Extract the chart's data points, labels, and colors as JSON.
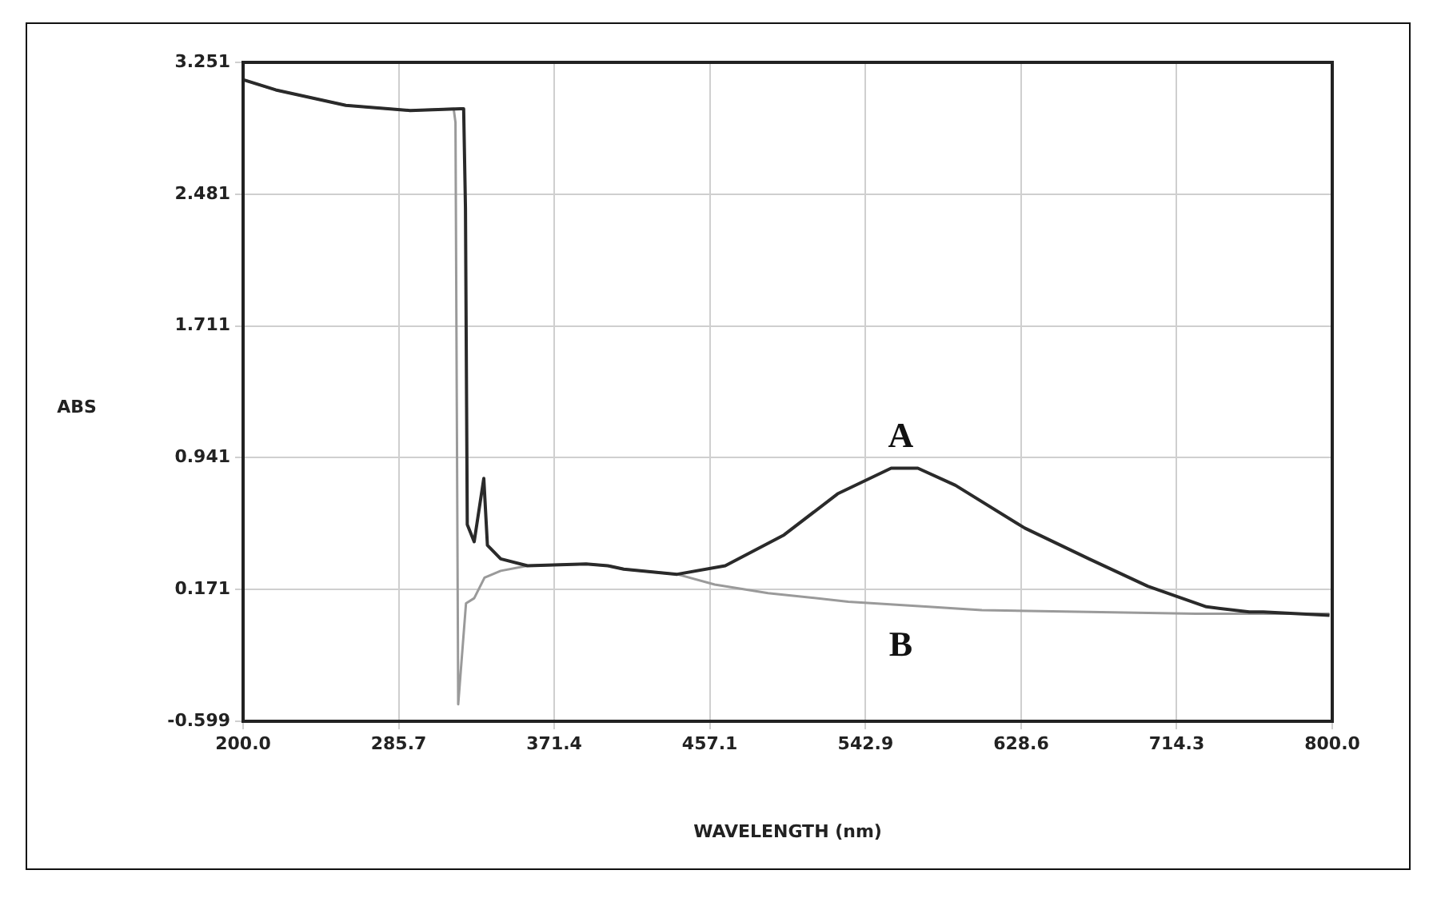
{
  "chart_data": {
    "type": "line",
    "xlabel": "WAVELENGTH (nm)",
    "ylabel": "ABS",
    "xlim": [
      200,
      800
    ],
    "xticks": [
      {
        "value": 200,
        "label": "200.0"
      },
      {
        "value": 285.7,
        "label": "285.7"
      },
      {
        "value": 371.4,
        "label": "371.4"
      },
      {
        "value": 457.1,
        "label": "457.1"
      },
      {
        "value": 542.9,
        "label": "542.9"
      },
      {
        "value": 628.6,
        "label": "628.6"
      },
      {
        "value": 714.3,
        "label": "714.3"
      },
      {
        "value": 800,
        "label": "800.0"
      }
    ],
    "ylim": [
      -0.599,
      3.251
    ],
    "yticks": [
      -0.599,
      0.171,
      0.941,
      1.711,
      2.481,
      3.251
    ],
    "grid": true,
    "legend": false,
    "marker": "none",
    "line_style": "solid",
    "series": [
      {
        "name": "A",
        "color": "#2a2a2a",
        "x": [
          200,
          218,
          256.6,
          292,
          319.8,
          321.5,
          322.5,
          323.5,
          327.3,
          332.6,
          334.6,
          341.9,
          356.7,
          389,
          400.9,
          409.7,
          439.1,
          465.6,
          498,
          527.5,
          557,
          571.7,
          592.4,
          630.6,
          666,
          698.4,
          730.7,
          754.3,
          762,
          798.5
        ],
        "values": [
          3.15,
          3.09,
          3.0,
          2.97,
          2.98,
          2.98,
          2.4,
          0.55,
          0.45,
          0.82,
          0.43,
          0.35,
          0.31,
          0.32,
          0.31,
          0.29,
          0.26,
          0.31,
          0.49,
          0.73,
          0.88,
          0.88,
          0.78,
          0.53,
          0.35,
          0.19,
          0.07,
          0.04,
          0.04,
          0.02
        ]
      },
      {
        "name": "B",
        "color": "#9a9a9a",
        "x": [
          200,
          218,
          256.6,
          292,
          316,
          317,
          318.5,
          322.8,
          327.3,
          333,
          341.9,
          356.7,
          389,
          400.9,
          409.7,
          439.1,
          459.8,
          489.2,
          533.4,
          577.6,
          607,
          666,
          725,
          798.5
        ],
        "values": [
          3.15,
          3.09,
          3.0,
          2.97,
          2.98,
          2.9,
          -0.5,
          0.09,
          0.12,
          0.24,
          0.28,
          0.31,
          0.32,
          0.31,
          0.29,
          0.26,
          0.2,
          0.15,
          0.1,
          0.07,
          0.05,
          0.04,
          0.03,
          0.03
        ]
      }
    ]
  }
}
